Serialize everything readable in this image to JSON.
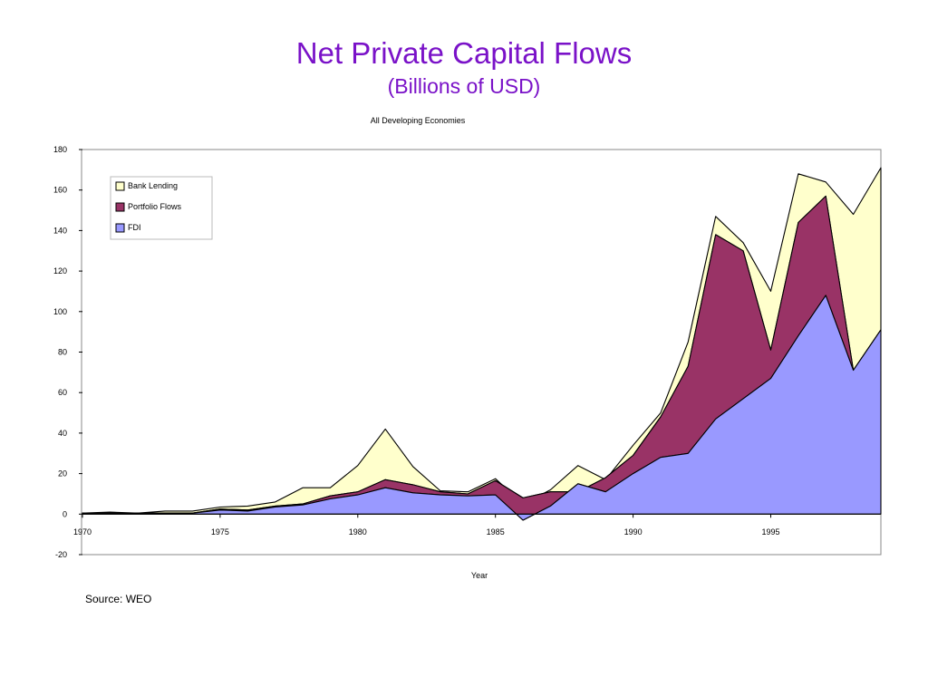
{
  "page": {
    "title": "Net Private Capital Flows",
    "subtitle": "(Billions of USD)",
    "source": "Source: WEO"
  },
  "chart_data": {
    "type": "area",
    "stacked": true,
    "title": "All Developing Economies",
    "xlabel": "Year",
    "ylabel": "",
    "xlim": [
      1970,
      1999
    ],
    "ylim": [
      -20,
      180
    ],
    "x_ticks": [
      1970,
      1975,
      1980,
      1985,
      1990,
      1995
    ],
    "y_ticks": [
      -20,
      0,
      20,
      40,
      60,
      80,
      100,
      120,
      140,
      160,
      180
    ],
    "grid": false,
    "legend_position": "top-left",
    "x": [
      1970,
      1971,
      1972,
      1973,
      1974,
      1975,
      1976,
      1977,
      1978,
      1979,
      1980,
      1981,
      1982,
      1983,
      1984,
      1985,
      1986,
      1987,
      1988,
      1989,
      1990,
      1991,
      1992,
      1993,
      1994,
      1995,
      1996,
      1997,
      1998,
      1999
    ],
    "series": [
      {
        "name": "FDI",
        "color": "#9999ff",
        "values": [
          0.5,
          0.5,
          0.5,
          0.5,
          0.5,
          2,
          1.5,
          3.5,
          4.5,
          7.5,
          9.5,
          13,
          10.5,
          9.5,
          9,
          9.5,
          -3,
          4,
          15,
          11,
          20,
          28,
          30,
          47,
          57,
          67,
          88,
          108,
          71,
          91
        ]
      },
      {
        "name": "Portfolio Flows",
        "color": "#993366",
        "values": [
          0,
          0,
          0,
          0,
          0,
          0.5,
          0.5,
          0.5,
          0.5,
          1.5,
          1.5,
          4,
          4,
          1.5,
          1,
          7,
          11,
          7,
          -4,
          7,
          9,
          20,
          43,
          91,
          73,
          14,
          56,
          49,
          0,
          0
        ]
      },
      {
        "name": "Bank Lending",
        "color": "#ffffcc",
        "values": [
          0,
          0.5,
          0,
          1,
          1,
          1,
          2,
          2,
          8,
          4,
          13,
          25,
          9,
          0.5,
          1,
          1,
          -3,
          1,
          13,
          -1,
          5,
          2,
          12,
          9,
          4,
          29,
          24,
          7,
          77,
          80
        ]
      }
    ]
  }
}
